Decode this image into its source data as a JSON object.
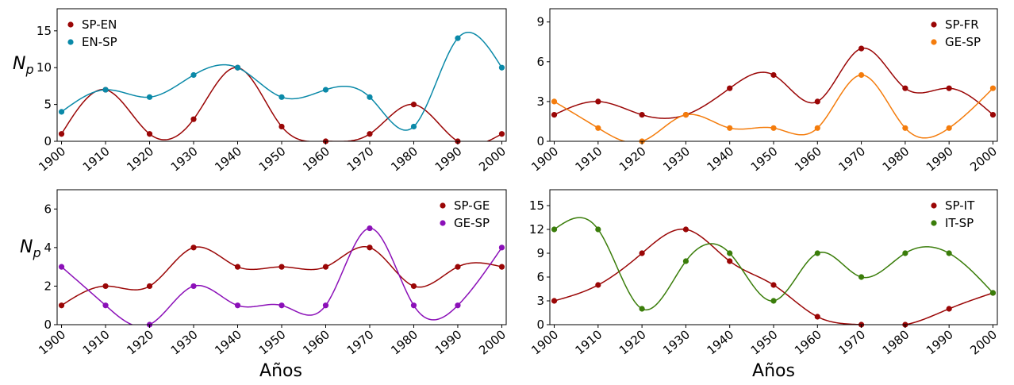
{
  "figure": {
    "xlabel_bottom_left": "Años",
    "xlabel_bottom_right": "Años",
    "ylabel_left_top": "N",
    "ylabel_left_top_sub": "p",
    "ylabel_left_bottom": "N",
    "ylabel_left_bottom_sub": "p"
  },
  "chart_data": [
    {
      "type": "line",
      "panel": "top-left",
      "x": [
        1900,
        1910,
        1920,
        1930,
        1940,
        1950,
        1960,
        1970,
        1980,
        1990,
        2000
      ],
      "xticks": [
        1900,
        1910,
        1920,
        1930,
        1940,
        1950,
        1960,
        1970,
        1980,
        1990,
        2000
      ],
      "xlim": [
        1899,
        2001
      ],
      "ylim": [
        0,
        18
      ],
      "yticks": [
        0,
        5,
        10,
        15
      ],
      "ylabel": "N_p",
      "xlabel": "",
      "legend": "top-left",
      "series": [
        {
          "name": "SP-EN",
          "color": "#9a0606",
          "values": [
            1,
            7,
            1,
            3,
            10,
            2,
            0,
            1,
            5,
            0,
            1
          ]
        },
        {
          "name": "EN-SP",
          "color": "#0a89a8",
          "values": [
            4,
            7,
            6,
            9,
            10,
            6,
            7,
            6,
            2,
            14,
            10
          ]
        }
      ]
    },
    {
      "type": "line",
      "panel": "top-right",
      "x": [
        1900,
        1910,
        1920,
        1930,
        1940,
        1950,
        1960,
        1970,
        1980,
        1990,
        2000
      ],
      "xticks": [
        1900,
        1910,
        1920,
        1930,
        1940,
        1950,
        1960,
        1970,
        1980,
        1990,
        2000
      ],
      "xlim": [
        1899,
        2001
      ],
      "ylim": [
        0,
        10
      ],
      "yticks": [
        0,
        3,
        6,
        9
      ],
      "ylabel": "",
      "xlabel": "",
      "legend": "top-right",
      "series": [
        {
          "name": "SP-FR",
          "color": "#9a0606",
          "values": [
            2,
            3,
            2,
            2,
            4,
            5,
            3,
            7,
            4,
            4,
            2
          ]
        },
        {
          "name": "GE-SP",
          "color": "#f47c0c",
          "values": [
            3,
            1,
            0,
            2,
            1,
            1,
            1,
            5,
            1,
            1,
            4
          ]
        }
      ]
    },
    {
      "type": "line",
      "panel": "bottom-left",
      "x": [
        1900,
        1910,
        1920,
        1930,
        1940,
        1950,
        1960,
        1970,
        1980,
        1990,
        2000
      ],
      "xticks": [
        1900,
        1910,
        1920,
        1930,
        1940,
        1950,
        1960,
        1970,
        1980,
        1990,
        2000
      ],
      "xlim": [
        1899,
        2001
      ],
      "ylim": [
        0,
        7
      ],
      "yticks": [
        0,
        2,
        4,
        6
      ],
      "ylabel": "N_p",
      "xlabel": "Años",
      "legend": "top-right",
      "series": [
        {
          "name": "SP-GE",
          "color": "#9a0606",
          "values": [
            1,
            2,
            2,
            4,
            3,
            3,
            3,
            4,
            2,
            3,
            3
          ]
        },
        {
          "name": "GE-SP",
          "color": "#8b10b8",
          "values": [
            3,
            1,
            0,
            2,
            1,
            1,
            1,
            5,
            1,
            1,
            4
          ]
        }
      ]
    },
    {
      "type": "line",
      "panel": "bottom-right",
      "x": [
        1900,
        1910,
        1920,
        1930,
        1940,
        1950,
        1960,
        1970,
        1980,
        1990,
        2000
      ],
      "xticks": [
        1900,
        1910,
        1920,
        1930,
        1940,
        1950,
        1960,
        1970,
        1980,
        1990,
        2000
      ],
      "xlim": [
        1899,
        2001
      ],
      "ylim": [
        0,
        17
      ],
      "yticks": [
        0,
        3,
        6,
        9,
        12,
        15
      ],
      "ylabel": "",
      "xlabel": "Años",
      "legend": "top-right",
      "series": [
        {
          "name": "SP-IT",
          "color": "#9a0606",
          "values": [
            3,
            5,
            9,
            12,
            8,
            5,
            1,
            0,
            0,
            2,
            4
          ]
        },
        {
          "name": "IT-SP",
          "color": "#3a7d0a",
          "values": [
            12,
            12,
            2,
            8,
            9,
            3,
            9,
            6,
            9,
            9,
            4
          ]
        }
      ]
    }
  ]
}
